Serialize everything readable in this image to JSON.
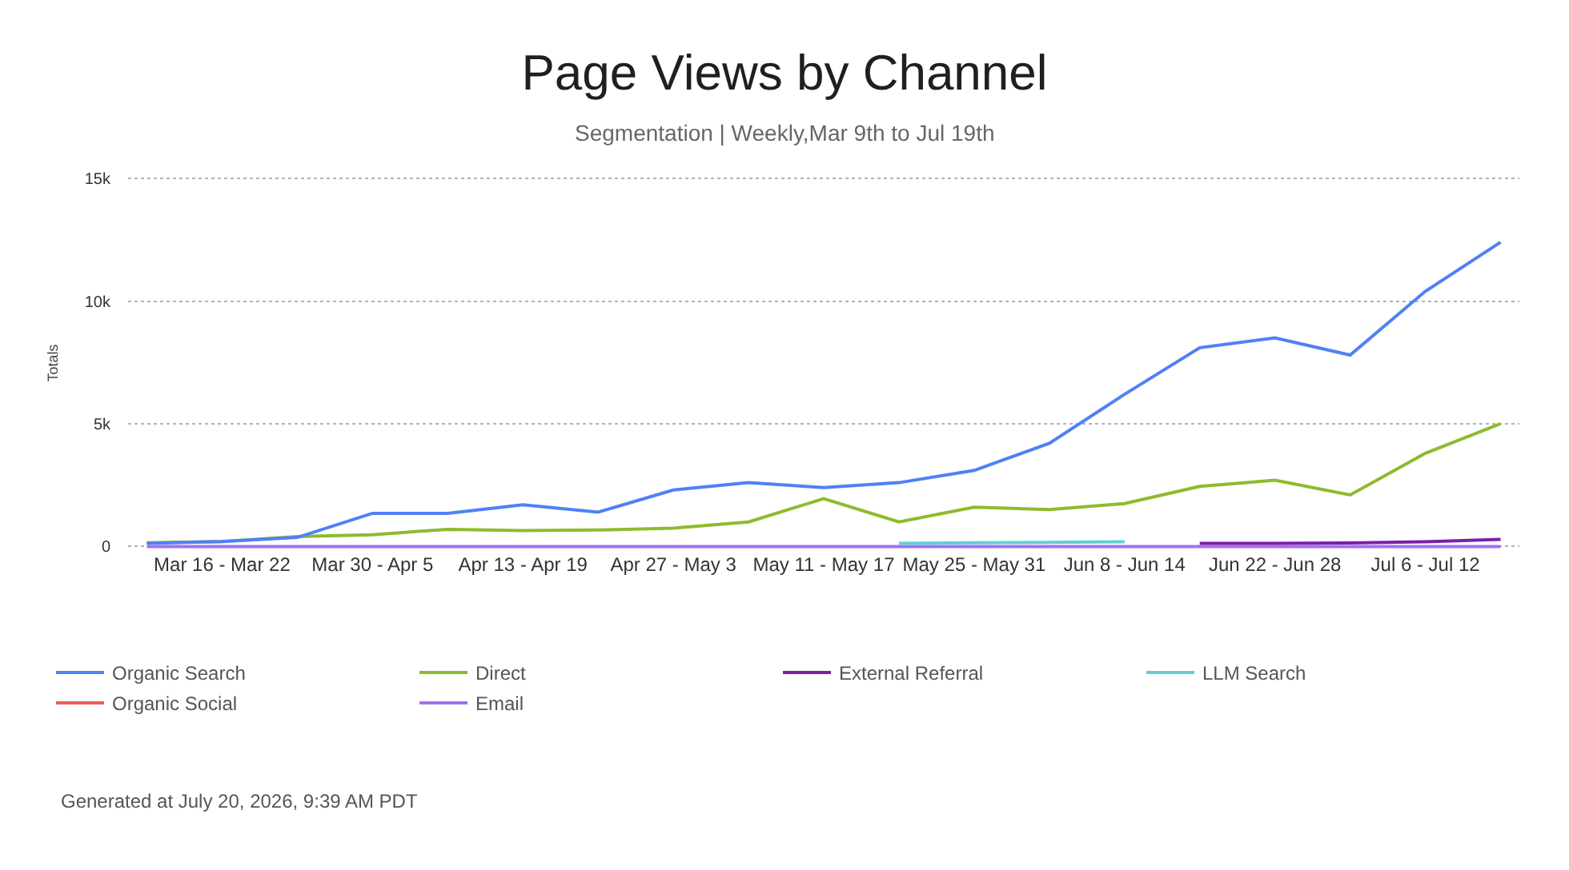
{
  "chart_data": {
    "type": "line",
    "title": "Page Views by Channel",
    "subtitle": "Segmentation | Weekly,Mar 9th to Jul 19th",
    "ylabel": "Totals",
    "categories": [
      null,
      "Mar 16 - Mar 22",
      null,
      "Mar 30 - Apr 5",
      null,
      "Apr 13 - Apr 19",
      null,
      "Apr 27 - May 3",
      null,
      "May 11 - May 17",
      null,
      "May 25 - May 31",
      null,
      "Jun 8 - Jun 14",
      null,
      "Jun 22 - Jun 28",
      null,
      "Jul 6 - Jul 12",
      null
    ],
    "series": [
      {
        "name": "Organic Search",
        "color": "#4f80f7",
        "values": [
          130,
          200,
          370,
          1350,
          1350,
          1700,
          1400,
          2300,
          2600,
          2400,
          2600,
          3100,
          4200,
          6200,
          8100,
          8500,
          7800,
          10400,
          12400
        ]
      },
      {
        "name": "Direct",
        "color": "#8fba2e",
        "values": [
          150,
          200,
          400,
          480,
          700,
          650,
          670,
          750,
          1000,
          1950,
          1000,
          1600,
          1500,
          1750,
          2450,
          2700,
          2100,
          3800,
          5000
        ]
      },
      {
        "name": "External Referral",
        "color": "#7a1fa8",
        "values": [
          null,
          null,
          null,
          null,
          null,
          null,
          null,
          null,
          null,
          null,
          null,
          null,
          null,
          null,
          130,
          130,
          140,
          190,
          290
        ]
      },
      {
        "name": "LLM Search",
        "color": "#5fd0d6",
        "values": [
          null,
          null,
          null,
          null,
          null,
          null,
          null,
          null,
          null,
          null,
          130,
          150,
          170,
          190,
          null,
          null,
          null,
          null,
          null
        ]
      },
      {
        "name": "Organic Social",
        "color": "#e8605a",
        "values": [
          null,
          null,
          null,
          null,
          null,
          null,
          null,
          null,
          null,
          null,
          null,
          null,
          null,
          null,
          null,
          null,
          null,
          null,
          null
        ]
      },
      {
        "name": "Email",
        "color": "#a36ef5",
        "values": [
          0,
          0,
          0,
          0,
          0,
          0,
          0,
          0,
          0,
          0,
          0,
          0,
          0,
          0,
          0,
          0,
          0,
          0,
          0
        ]
      }
    ],
    "ylim": [
      -150,
      15100
    ],
    "yticks": [
      0,
      {
        "value": 5000,
        "label": "5k"
      },
      {
        "value": 10000,
        "label": "10k"
      },
      {
        "value": 15000,
        "label": "15k"
      }
    ],
    "grid": "y",
    "legend": "bottom",
    "line_style": "solid",
    "annotations": [
      "Generated at July 20, 2026, 9:39 AM PDT"
    ]
  }
}
